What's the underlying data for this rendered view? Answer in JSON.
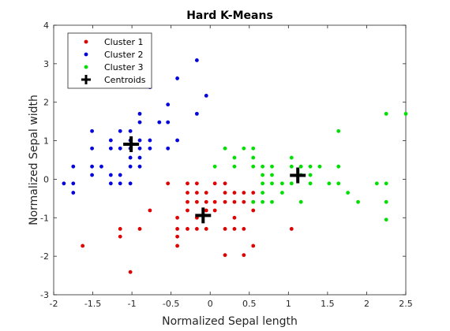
{
  "chart_data": {
    "type": "scatter",
    "title": "Hard K-Means",
    "xlabel": "Normalized Sepal length",
    "ylabel": "Normalized Sepal width",
    "xlim": [
      -2,
      2.5
    ],
    "ylim": [
      -3,
      4
    ],
    "xticks": [
      -2,
      -1.5,
      -1,
      -0.5,
      0,
      0.5,
      1,
      1.5,
      2,
      2.5
    ],
    "xtick_labels": [
      "-2",
      "-1.5",
      "-1",
      "-0.5",
      "0",
      "0.5",
      "1",
      "1.5",
      "2",
      "2.5"
    ],
    "yticks": [
      -3,
      -2,
      -1,
      0,
      1,
      2,
      3,
      4
    ],
    "ytick_labels": [
      "-3",
      "-2",
      "-1",
      "0",
      "1",
      "2",
      "3",
      "4"
    ],
    "grid": false,
    "legend_position": "top-left",
    "series": [
      {
        "name": "Cluster 1",
        "color": "#e00000",
        "marker": "dot",
        "points": [
          [
            -1.63,
            -1.73
          ],
          [
            -1.02,
            -2.41
          ],
          [
            -1.15,
            -1.29
          ],
          [
            -1.15,
            -1.49
          ],
          [
            -0.9,
            -1.29
          ],
          [
            -0.77,
            -0.81
          ],
          [
            -0.54,
            -0.11
          ],
          [
            -0.42,
            -1.0
          ],
          [
            -0.42,
            -1.29
          ],
          [
            -0.42,
            -1.49
          ],
          [
            -0.42,
            -1.73
          ],
          [
            -0.29,
            -0.11
          ],
          [
            -0.29,
            -0.35
          ],
          [
            -0.29,
            -0.59
          ],
          [
            -0.29,
            -0.81
          ],
          [
            -0.29,
            -1.29
          ],
          [
            -0.17,
            -0.11
          ],
          [
            -0.17,
            -0.35
          ],
          [
            -0.17,
            -0.59
          ],
          [
            -0.17,
            -1.0
          ],
          [
            -0.17,
            -1.29
          ],
          [
            -0.05,
            -0.35
          ],
          [
            -0.05,
            -0.59
          ],
          [
            -0.05,
            -0.81
          ],
          [
            -0.05,
            -1.29
          ],
          [
            0.06,
            -0.11
          ],
          [
            0.06,
            -0.59
          ],
          [
            0.06,
            -0.81
          ],
          [
            0.19,
            -0.11
          ],
          [
            0.19,
            -0.35
          ],
          [
            0.19,
            -0.59
          ],
          [
            0.19,
            -1.29
          ],
          [
            0.19,
            -1.97
          ],
          [
            0.31,
            -0.35
          ],
          [
            0.31,
            -0.59
          ],
          [
            0.31,
            -1.0
          ],
          [
            0.31,
            -1.29
          ],
          [
            0.43,
            -0.35
          ],
          [
            0.43,
            -0.59
          ],
          [
            0.43,
            -1.29
          ],
          [
            0.43,
            -1.97
          ],
          [
            0.55,
            -0.35
          ],
          [
            0.55,
            -0.59
          ],
          [
            0.55,
            -0.81
          ],
          [
            0.55,
            -1.73
          ],
          [
            1.04,
            -1.29
          ]
        ]
      },
      {
        "name": "Cluster 2",
        "color": "#0000e0",
        "marker": "dot",
        "points": [
          [
            -1.87,
            -0.11
          ],
          [
            -1.75,
            0.33
          ],
          [
            -1.75,
            -0.11
          ],
          [
            -1.75,
            -0.35
          ],
          [
            -1.51,
            1.25
          ],
          [
            -1.51,
            0.8
          ],
          [
            -1.51,
            0.33
          ],
          [
            -1.51,
            0.11
          ],
          [
            -1.39,
            0.33
          ],
          [
            -1.27,
            1.01
          ],
          [
            -1.27,
            0.8
          ],
          [
            -1.27,
            0.11
          ],
          [
            -1.27,
            -0.11
          ],
          [
            -1.15,
            1.25
          ],
          [
            -1.15,
            0.8
          ],
          [
            -1.15,
            0.11
          ],
          [
            -1.15,
            -0.11
          ],
          [
            -1.02,
            1.25
          ],
          [
            -1.02,
            1.01
          ],
          [
            -1.02,
            0.8
          ],
          [
            -1.02,
            0.56
          ],
          [
            -1.02,
            0.33
          ],
          [
            -1.02,
            -0.11
          ],
          [
            -0.9,
            1.7
          ],
          [
            -0.9,
            1.48
          ],
          [
            -0.9,
            1.01
          ],
          [
            -0.9,
            0.8
          ],
          [
            -0.9,
            0.56
          ],
          [
            -0.9,
            0.33
          ],
          [
            -0.77,
            2.39
          ],
          [
            -0.77,
            1.01
          ],
          [
            -0.77,
            0.8
          ],
          [
            -0.65,
            1.48
          ],
          [
            -0.54,
            1.94
          ],
          [
            -0.54,
            1.48
          ],
          [
            -0.54,
            0.8
          ],
          [
            -0.42,
            2.62
          ],
          [
            -0.42,
            1.01
          ],
          [
            -0.17,
            3.09
          ],
          [
            -0.17,
            1.7
          ],
          [
            -0.05,
            2.17
          ]
        ]
      },
      {
        "name": "Cluster 3",
        "color": "#00e000",
        "marker": "dot",
        "points": [
          [
            0.06,
            0.33
          ],
          [
            0.19,
            0.8
          ],
          [
            0.31,
            0.56
          ],
          [
            0.31,
            0.33
          ],
          [
            0.43,
            0.8
          ],
          [
            0.55,
            0.8
          ],
          [
            0.55,
            0.56
          ],
          [
            0.55,
            0.33
          ],
          [
            0.55,
            -0.59
          ],
          [
            0.67,
            0.33
          ],
          [
            0.67,
            0.11
          ],
          [
            0.67,
            -0.11
          ],
          [
            0.67,
            -0.35
          ],
          [
            0.67,
            -0.59
          ],
          [
            0.79,
            0.33
          ],
          [
            0.79,
            0.11
          ],
          [
            0.79,
            -0.11
          ],
          [
            0.79,
            -0.59
          ],
          [
            0.92,
            -0.11
          ],
          [
            0.92,
            -0.35
          ],
          [
            1.04,
            0.56
          ],
          [
            1.04,
            0.33
          ],
          [
            1.04,
            -0.11
          ],
          [
            1.16,
            0.33
          ],
          [
            1.16,
            0.11
          ],
          [
            1.16,
            -0.59
          ],
          [
            1.28,
            0.33
          ],
          [
            1.28,
            0.11
          ],
          [
            1.28,
            -0.11
          ],
          [
            1.4,
            0.33
          ],
          [
            1.52,
            -0.11
          ],
          [
            1.64,
            1.25
          ],
          [
            1.64,
            0.33
          ],
          [
            1.64,
            -0.11
          ],
          [
            1.76,
            -0.35
          ],
          [
            1.89,
            -0.59
          ],
          [
            2.13,
            -0.11
          ],
          [
            2.25,
            1.7
          ],
          [
            2.25,
            -0.11
          ],
          [
            2.25,
            -0.59
          ],
          [
            2.25,
            -1.05
          ],
          [
            2.5,
            1.7
          ]
        ]
      },
      {
        "name": "Centroids",
        "color": "#000000",
        "marker": "plus",
        "points": [
          [
            -1.01,
            0.91
          ],
          [
            -0.09,
            -0.94
          ],
          [
            1.12,
            0.1
          ]
        ]
      }
    ]
  }
}
